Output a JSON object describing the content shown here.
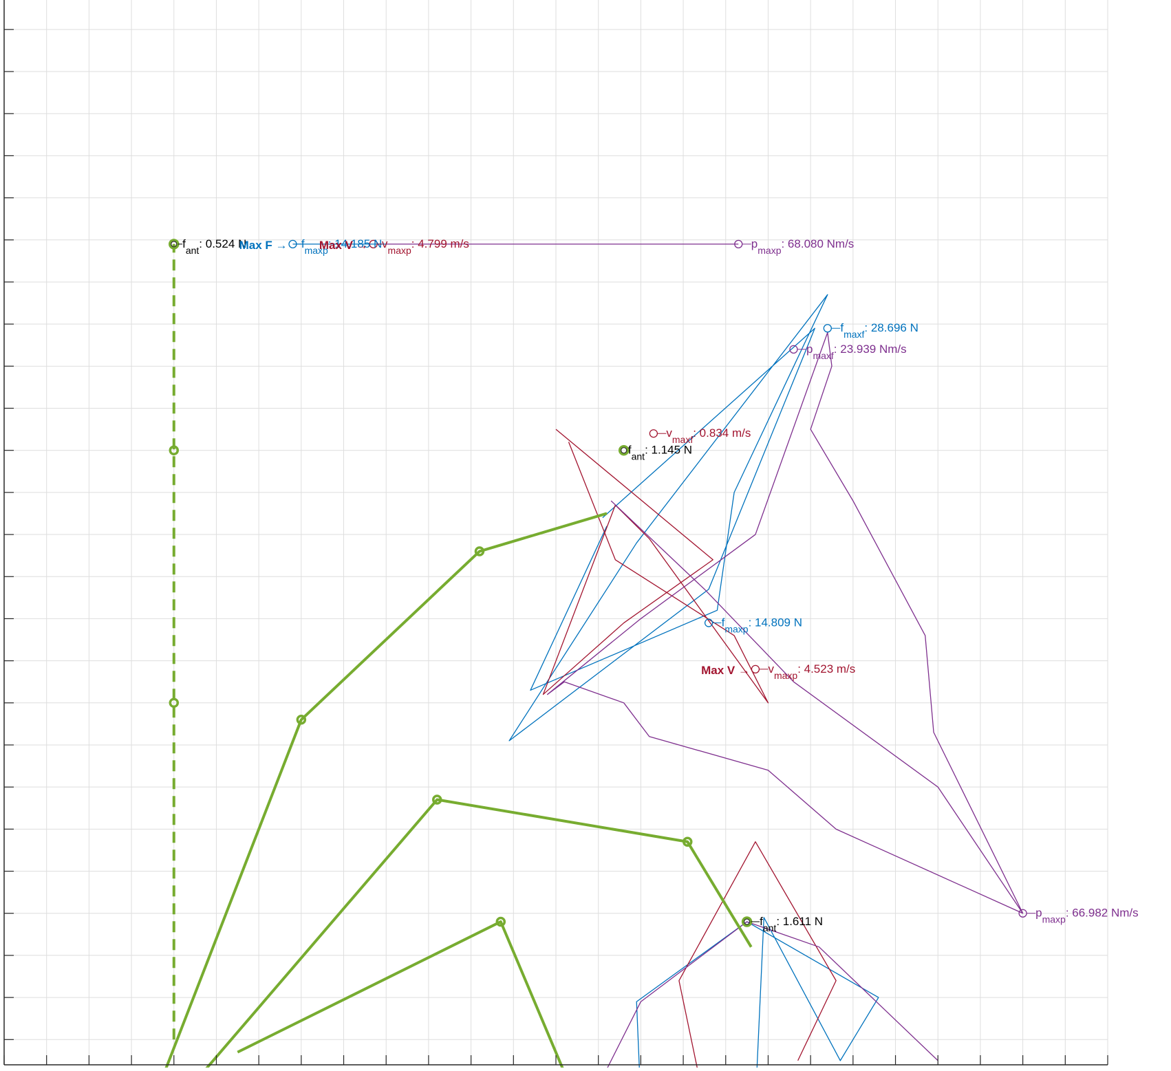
{
  "chart_data": {
    "type": "line",
    "title": "",
    "xlabel": "",
    "ylabel": "",
    "grid": true,
    "xlim": [
      0,
      26
    ],
    "ylim": [
      -0.6,
      24.7
    ],
    "colors": {
      "linkage": "#77ac30",
      "force": "#0072bd",
      "velocity": "#a2142f",
      "power": "#7e2f8e",
      "antenna": "#000000",
      "grid": "#dedede",
      "axis": "#262626"
    },
    "mechanism": {
      "dashed_link": [
        [
          4,
          0
        ],
        [
          4,
          8
        ],
        [
          4,
          14
        ],
        [
          4,
          18.9
        ]
      ],
      "chains": [
        [
          [
            3.5,
            -1.5
          ],
          [
            7.0,
            7.6
          ],
          [
            11.2,
            11.6
          ],
          [
            14.2,
            12.5
          ]
        ],
        [
          [
            4.5,
            -1.0
          ],
          [
            10.2,
            5.7
          ],
          [
            16.1,
            4.7
          ],
          [
            17.6,
            2.2
          ]
        ],
        [
          [
            5.5,
            -0.3
          ],
          [
            11.7,
            2.8
          ],
          [
            13.5,
            -1.5
          ]
        ]
      ],
      "joint_markers": [
        [
          7.0,
          7.6
        ],
        [
          11.2,
          11.6
        ],
        [
          10.2,
          5.7
        ],
        [
          16.1,
          4.7
        ],
        [
          11.7,
          2.8
        ],
        [
          4.0,
          8.0
        ],
        [
          4.0,
          14.0
        ]
      ]
    },
    "series": [
      {
        "kind": "force",
        "points": [
          [
            14.1,
            12.4
          ],
          [
            19.1,
            16.9
          ],
          [
            16.6,
            10.7
          ],
          [
            11.9,
            7.1
          ],
          [
            14.9,
            11.8
          ],
          [
            19.4,
            17.7
          ],
          [
            17.2,
            13.0
          ],
          [
            16.8,
            10.2
          ],
          [
            12.4,
            8.3
          ],
          [
            14.2,
            12.2
          ]
        ]
      },
      {
        "kind": "velocity",
        "points": [
          [
            13.0,
            14.5
          ],
          [
            16.7,
            11.4
          ],
          [
            14.6,
            9.9
          ],
          [
            12.7,
            8.2
          ],
          [
            14.4,
            12.7
          ],
          [
            15.2,
            11.9
          ],
          [
            18.0,
            8.0
          ],
          [
            17.2,
            9.6
          ],
          [
            14.4,
            11.4
          ],
          [
            13.3,
            14.2
          ]
        ]
      },
      {
        "kind": "power",
        "points": [
          [
            14.3,
            12.8
          ],
          [
            16.5,
            10.7
          ],
          [
            18.6,
            8.5
          ],
          [
            22.0,
            6.0
          ],
          [
            24.0,
            3.0
          ],
          [
            19.6,
            5.0
          ],
          [
            18.0,
            6.4
          ],
          [
            15.2,
            7.2
          ],
          [
            14.6,
            8.0
          ],
          [
            13.2,
            8.5
          ],
          [
            12.8,
            8.2
          ],
          [
            15.0,
            10.0
          ],
          [
            17.7,
            12.0
          ],
          [
            19.4,
            16.8
          ],
          [
            19.5,
            16.0
          ],
          [
            19.0,
            14.5
          ],
          [
            20.0,
            12.8
          ],
          [
            21.7,
            9.6
          ],
          [
            21.9,
            7.3
          ],
          [
            24.0,
            3.0
          ]
        ]
      },
      {
        "kind": "force",
        "points": [
          [
            15.0,
            -1.5
          ],
          [
            14.9,
            0.9
          ],
          [
            17.5,
            2.8
          ],
          [
            20.6,
            1.0
          ],
          [
            19.7,
            -0.5
          ],
          [
            17.9,
            2.9
          ],
          [
            17.7,
            -1.5
          ]
        ]
      },
      {
        "kind": "velocity",
        "points": [
          [
            16.5,
            -1.5
          ],
          [
            15.9,
            1.4
          ],
          [
            17.7,
            4.7
          ],
          [
            19.6,
            1.4
          ],
          [
            18.7,
            -0.5
          ]
        ]
      },
      {
        "kind": "power",
        "points": [
          [
            13.8,
            -1.5
          ],
          [
            15.0,
            0.9
          ],
          [
            17.5,
            2.8
          ],
          [
            19.2,
            2.2
          ],
          [
            22.0,
            -0.5
          ]
        ]
      },
      {
        "kind": "force",
        "points": [
          [
            6.8,
            18.9
          ],
          [
            9.0,
            18.9
          ]
        ]
      },
      {
        "kind": "power",
        "points": [
          [
            9.0,
            18.9
          ],
          [
            17.3,
            18.9
          ]
        ]
      }
    ],
    "annotations": [
      {
        "kind": "antenna",
        "x": 4.0,
        "y": 18.9,
        "label": "f",
        "sub": "ant",
        "value": ": 0.524 N",
        "tx": 4.2,
        "ty": 18.9
      },
      {
        "kind": "force",
        "x": 6.8,
        "y": 18.9,
        "label": "f",
        "sub": "maxp",
        "value": ": 14.185 N",
        "tx": 7.0,
        "ty": 18.9,
        "prefix": "Max F →"
      },
      {
        "kind": "velocity",
        "x": 8.7,
        "y": 18.9,
        "label": "v",
        "sub": "maxp",
        "value": ": 4.799 m/s",
        "tx": 8.9,
        "ty": 18.9,
        "prefix": "Max V →"
      },
      {
        "kind": "power",
        "x": 17.3,
        "y": 18.9,
        "label": "p",
        "sub": "maxp",
        "value": ": 68.080 Nm/s",
        "tx": 17.6,
        "ty": 18.9
      },
      {
        "kind": "force",
        "x": 19.4,
        "y": 16.9,
        "label": "f",
        "sub": "maxf",
        "value": ": 28.696 N",
        "tx": 19.7,
        "ty": 16.9
      },
      {
        "kind": "power",
        "x": 18.6,
        "y": 16.4,
        "label": "p",
        "sub": "maxf",
        "value": ": 23.939 Nm/s",
        "tx": 18.9,
        "ty": 16.4
      },
      {
        "kind": "velocity",
        "x": 15.3,
        "y": 14.4,
        "label": "v",
        "sub": "maxf",
        "value": ": 0.834 m/s",
        "tx": 15.6,
        "ty": 14.4
      },
      {
        "kind": "antenna",
        "x": 14.6,
        "y": 14.0,
        "label": "f",
        "sub": "ant",
        "value": ": 1.145 N",
        "tx": 14.7,
        "ty": 14.0
      },
      {
        "kind": "force",
        "x": 16.6,
        "y": 9.9,
        "label": "f",
        "sub": "maxp",
        "value": ": 14.809 N",
        "tx": 16.9,
        "ty": 9.9
      },
      {
        "kind": "velocity",
        "x": 17.7,
        "y": 8.8,
        "label": "v",
        "sub": "maxp",
        "value": ": 4.523 m/s",
        "tx": 18.0,
        "ty": 8.8,
        "prefix": "Max V →"
      },
      {
        "kind": "power",
        "x": 24.0,
        "y": 3.0,
        "label": "p",
        "sub": "maxp",
        "value": ": 66.982 Nm/s",
        "tx": 24.3,
        "ty": 3.0
      },
      {
        "kind": "antenna",
        "x": 17.5,
        "y": 2.8,
        "label": "f",
        "sub": "ant",
        "value": ": 1.611 N",
        "tx": 17.8,
        "ty": 2.8
      }
    ]
  }
}
